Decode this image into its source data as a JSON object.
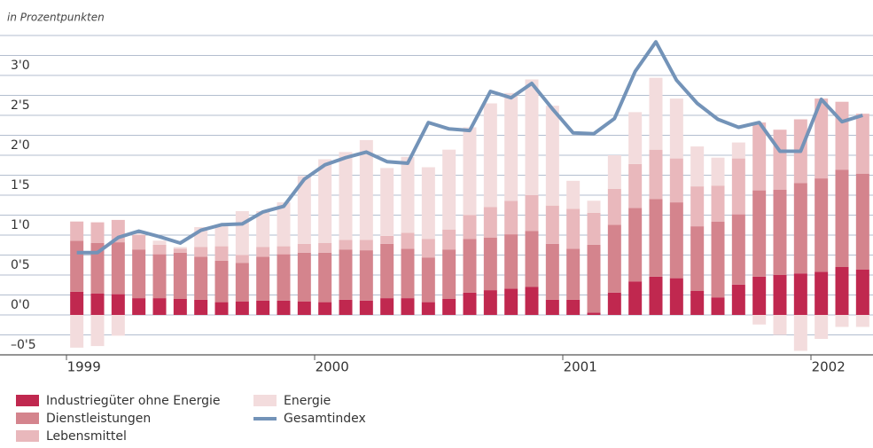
{
  "chart_data": {
    "type": "stacked-bar-line",
    "subtitle": "in Prozentpunkten",
    "categories": [
      "1999",
      null,
      null,
      null,
      null,
      null,
      null,
      null,
      null,
      null,
      null,
      null,
      "2000",
      null,
      null,
      null,
      null,
      null,
      null,
      null,
      null,
      null,
      null,
      null,
      "2001",
      null,
      null,
      null,
      null,
      null,
      null,
      null,
      null,
      null,
      null,
      null,
      "2002",
      null,
      null
    ],
    "series": [
      {
        "name": "Industriegüter ohne Energie",
        "color": "#c0284f",
        "values": [
          0.29,
          0.27,
          0.26,
          0.21,
          0.21,
          0.2,
          0.19,
          0.16,
          0.17,
          0.18,
          0.18,
          0.17,
          0.16,
          0.19,
          0.18,
          0.21,
          0.21,
          0.16,
          0.2,
          0.28,
          0.31,
          0.33,
          0.35,
          0.19,
          0.19,
          0.03,
          0.28,
          0.42,
          0.48,
          0.46,
          0.3,
          0.22,
          0.38,
          0.48,
          0.5,
          0.52,
          0.54,
          0.6,
          0.57
        ]
      },
      {
        "name": "Dienstleistungen",
        "color": "#d4848d",
        "values": [
          0.64,
          0.63,
          0.65,
          0.61,
          0.55,
          0.58,
          0.54,
          0.52,
          0.48,
          0.55,
          0.58,
          0.61,
          0.62,
          0.63,
          0.63,
          0.68,
          0.62,
          0.56,
          0.62,
          0.67,
          0.66,
          0.68,
          0.7,
          0.7,
          0.64,
          0.85,
          0.85,
          0.92,
          0.97,
          0.95,
          0.81,
          0.95,
          0.88,
          1.08,
          1.07,
          1.13,
          1.17,
          1.22,
          1.2
        ]
      },
      {
        "name": "Lebensmittel",
        "color": "#e9b8bc",
        "values": [
          0.24,
          0.26,
          0.28,
          0.18,
          0.12,
          0.05,
          0.12,
          0.18,
          0.1,
          0.12,
          0.1,
          0.11,
          0.12,
          0.12,
          0.13,
          0.1,
          0.2,
          0.23,
          0.25,
          0.3,
          0.38,
          0.42,
          0.45,
          0.48,
          0.5,
          0.4,
          0.45,
          0.55,
          0.62,
          0.55,
          0.5,
          0.45,
          0.7,
          0.85,
          0.75,
          0.8,
          1.0,
          0.85,
          0.75
        ]
      },
      {
        "name": "Energie",
        "color": "#f3dcdd",
        "values": [
          -0.41,
          -0.39,
          -0.26,
          0.05,
          0.05,
          0.02,
          0.25,
          0.25,
          0.55,
          0.45,
          0.55,
          0.85,
          1.05,
          1.1,
          1.25,
          0.85,
          0.95,
          0.9,
          1.0,
          1.1,
          1.3,
          1.35,
          1.45,
          1.25,
          0.35,
          0.15,
          0.42,
          0.65,
          0.9,
          0.75,
          0.5,
          0.35,
          0.2,
          -0.12,
          -0.25,
          -0.45,
          -0.3,
          -0.15,
          -0.15
        ]
      },
      {
        "name": "Gesamtindex",
        "color": "#7393b8",
        "kind": "line",
        "values": [
          0.78,
          0.78,
          0.97,
          1.05,
          0.98,
          0.9,
          1.06,
          1.13,
          1.14,
          1.29,
          1.36,
          1.7,
          1.88,
          1.97,
          2.04,
          1.92,
          1.9,
          2.41,
          2.33,
          2.31,
          2.8,
          2.72,
          2.9,
          2.58,
          2.28,
          2.27,
          2.46,
          3.05,
          3.42,
          2.94,
          2.65,
          2.45,
          2.35,
          2.41,
          2.05,
          2.05,
          2.7,
          2.42,
          2.5
        ]
      }
    ],
    "ylim": [
      -0.5,
      3.5
    ],
    "yticks": [
      {
        "value": -0.5,
        "label": "–0'5"
      },
      {
        "value": 0,
        "label": "0'0"
      },
      {
        "value": 0.5,
        "label": "0'5"
      },
      {
        "value": 1,
        "label": "1'0"
      },
      {
        "value": 1.5,
        "label": "1'5"
      },
      {
        "value": 2,
        "label": "2'0"
      },
      {
        "value": 2.5,
        "label": "2'5"
      },
      {
        "value": 3,
        "label": "3'0"
      }
    ],
    "yminor": [
      -0.25,
      0.25,
      0.75,
      1.25,
      1.75,
      2.25,
      2.75,
      3.25,
      3.5
    ],
    "grid": true,
    "legend": "bottom-left"
  }
}
